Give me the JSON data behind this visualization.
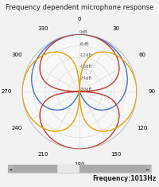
{
  "title": "Frequency dependent microphone response",
  "freq_label": "Frequency:1013Hz",
  "bg_color": "#f2f2f2",
  "r_ticks_db": [
    0,
    -6,
    -12,
    -18,
    -24,
    -30
  ],
  "r_tick_labels": [
    "0dB",
    "-6dB",
    "-12dB",
    "-18dB",
    "-24dB",
    "-30dB"
  ],
  "theta_ticks_deg": [
    0,
    30,
    60,
    90,
    120,
    150,
    180,
    210,
    240,
    270,
    300,
    330
  ],
  "blue_color": "#4472c4",
  "red_color": "#c0392b",
  "yellow_color": "#e8a000",
  "linewidth": 1.0,
  "title_fontsize": 6.0,
  "tick_fontsize": 5.0,
  "rlabel_fontsize": 4.0
}
